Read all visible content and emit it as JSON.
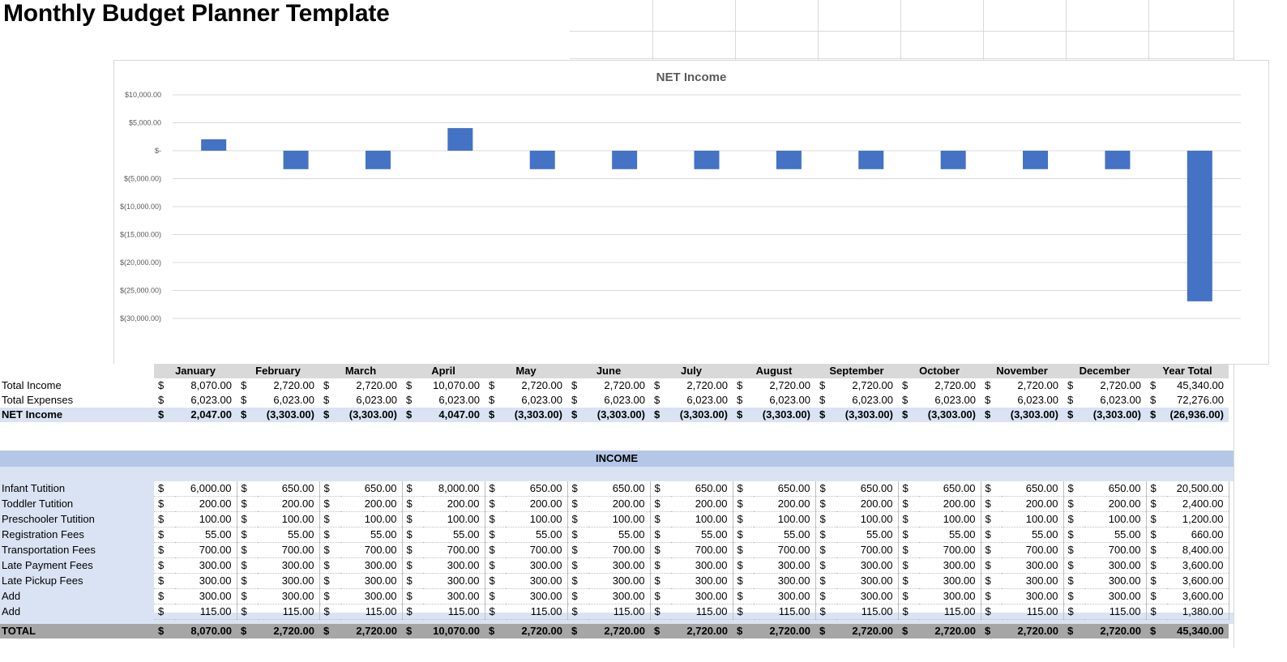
{
  "title": "Monthly Budget Planner Template",
  "chart_data": {
    "type": "bar",
    "title": "NET Income",
    "categories": [
      "January",
      "February",
      "March",
      "April",
      "May",
      "June",
      "July",
      "August",
      "September",
      "October",
      "November",
      "December",
      "Year Total"
    ],
    "values": [
      2047,
      -3303,
      -3303,
      4047,
      -3303,
      -3303,
      -3303,
      -3303,
      -3303,
      -3303,
      -3303,
      -3303,
      -26936
    ],
    "ylim": [
      -30000,
      10000
    ],
    "yticks": [
      10000,
      5000,
      0,
      -5000,
      -10000,
      -15000,
      -20000,
      -25000,
      -30000
    ],
    "ytick_labels": [
      "$10,000.00",
      "$5,000.00",
      "$-",
      "$(5,000.00)",
      "$(10,000.00)",
      "$(15,000.00)",
      "$(20,000.00)",
      "$(25,000.00)",
      "$(30,000.00)"
    ],
    "grid": true,
    "bar_color": "#4472c4"
  },
  "columns": [
    "January",
    "February",
    "March",
    "April",
    "May",
    "June",
    "July",
    "August",
    "September",
    "October",
    "November",
    "December",
    "Year Total"
  ],
  "currency": "$",
  "summary": [
    {
      "label": "Total Income",
      "values": [
        "8,070.00",
        "2,720.00",
        "2,720.00",
        "10,070.00",
        "2,720.00",
        "2,720.00",
        "2,720.00",
        "2,720.00",
        "2,720.00",
        "2,720.00",
        "2,720.00",
        "2,720.00",
        "45,340.00"
      ]
    },
    {
      "label": "Total Expenses",
      "values": [
        "6,023.00",
        "6,023.00",
        "6,023.00",
        "6,023.00",
        "6,023.00",
        "6,023.00",
        "6,023.00",
        "6,023.00",
        "6,023.00",
        "6,023.00",
        "6,023.00",
        "6,023.00",
        "72,276.00"
      ]
    },
    {
      "label": "NET Income",
      "values": [
        "2,047.00",
        "(3,303.00)",
        "(3,303.00)",
        "4,047.00",
        "(3,303.00)",
        "(3,303.00)",
        "(3,303.00)",
        "(3,303.00)",
        "(3,303.00)",
        "(3,303.00)",
        "(3,303.00)",
        "(3,303.00)",
        "(26,936.00)"
      ]
    }
  ],
  "income": {
    "title": "INCOME",
    "rows": [
      {
        "label": "Infant Tutition",
        "values": [
          "6,000.00",
          "650.00",
          "650.00",
          "8,000.00",
          "650.00",
          "650.00",
          "650.00",
          "650.00",
          "650.00",
          "650.00",
          "650.00",
          "650.00",
          "20,500.00"
        ]
      },
      {
        "label": "Toddler Tutition",
        "values": [
          "200.00",
          "200.00",
          "200.00",
          "200.00",
          "200.00",
          "200.00",
          "200.00",
          "200.00",
          "200.00",
          "200.00",
          "200.00",
          "200.00",
          "2,400.00"
        ]
      },
      {
        "label": "Preschooler Tutition",
        "values": [
          "100.00",
          "100.00",
          "100.00",
          "100.00",
          "100.00",
          "100.00",
          "100.00",
          "100.00",
          "100.00",
          "100.00",
          "100.00",
          "100.00",
          "1,200.00"
        ]
      },
      {
        "label": "Registration Fees",
        "values": [
          "55.00",
          "55.00",
          "55.00",
          "55.00",
          "55.00",
          "55.00",
          "55.00",
          "55.00",
          "55.00",
          "55.00",
          "55.00",
          "55.00",
          "660.00"
        ]
      },
      {
        "label": "Transportation Fees",
        "values": [
          "700.00",
          "700.00",
          "700.00",
          "700.00",
          "700.00",
          "700.00",
          "700.00",
          "700.00",
          "700.00",
          "700.00",
          "700.00",
          "700.00",
          "8,400.00"
        ]
      },
      {
        "label": "Late Payment Fees",
        "values": [
          "300.00",
          "300.00",
          "300.00",
          "300.00",
          "300.00",
          "300.00",
          "300.00",
          "300.00",
          "300.00",
          "300.00",
          "300.00",
          "300.00",
          "3,600.00"
        ]
      },
      {
        "label": "Late Pickup Fees",
        "values": [
          "300.00",
          "300.00",
          "300.00",
          "300.00",
          "300.00",
          "300.00",
          "300.00",
          "300.00",
          "300.00",
          "300.00",
          "300.00",
          "300.00",
          "3,600.00"
        ]
      },
      {
        "label": "Add",
        "values": [
          "300.00",
          "300.00",
          "300.00",
          "300.00",
          "300.00",
          "300.00",
          "300.00",
          "300.00",
          "300.00",
          "300.00",
          "300.00",
          "300.00",
          "3,600.00"
        ]
      },
      {
        "label": "Add",
        "values": [
          "115.00",
          "115.00",
          "115.00",
          "115.00",
          "115.00",
          "115.00",
          "115.00",
          "115.00",
          "115.00",
          "115.00",
          "115.00",
          "115.00",
          "1,380.00"
        ]
      }
    ],
    "total": {
      "label": "TOTAL",
      "values": [
        "8,070.00",
        "2,720.00",
        "2,720.00",
        "10,070.00",
        "2,720.00",
        "2,720.00",
        "2,720.00",
        "2,720.00",
        "2,720.00",
        "2,720.00",
        "2,720.00",
        "2,720.00",
        "45,340.00"
      ]
    }
  }
}
